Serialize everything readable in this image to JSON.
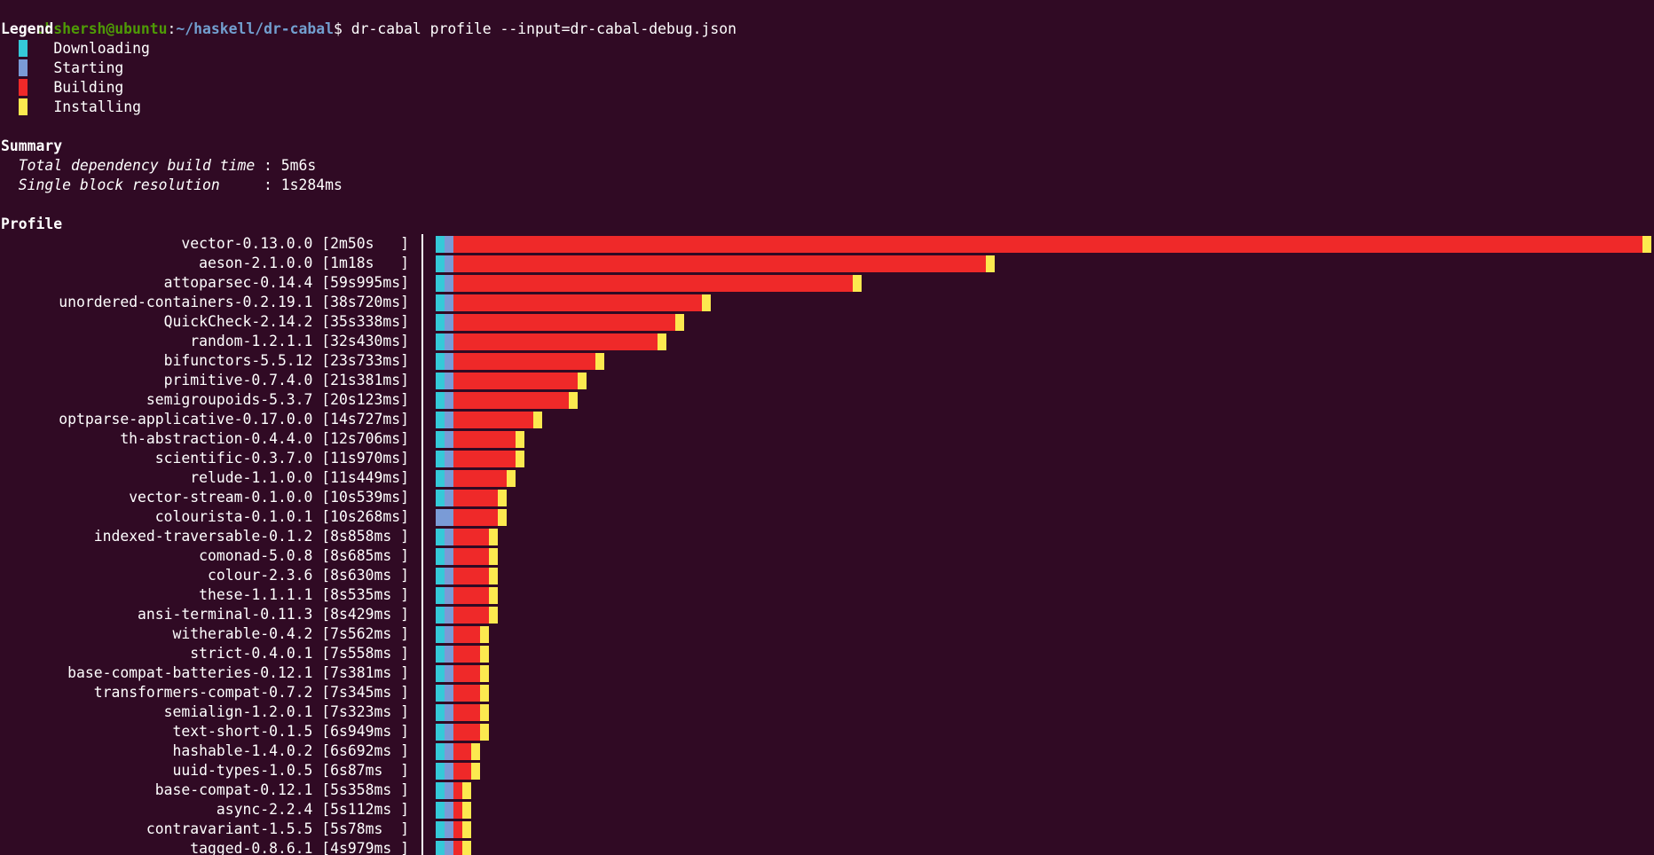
{
  "colors": {
    "background": "#300a24",
    "text": "#ffffff",
    "prompt_user": "#4e9a06",
    "prompt_path": "#729fcf",
    "downloading": "#35c9d8",
    "starting": "#7a9bd6",
    "building": "#ef2929",
    "installing": "#fce94f"
  },
  "prompt": {
    "user_host": "chshersh@ubuntu",
    "colon": ":",
    "path": "~/haskell/dr-cabal",
    "dollar": "$ ",
    "command": "dr-cabal profile --input=dr-cabal-debug.json"
  },
  "legend": {
    "title": "Legend",
    "items": [
      {
        "label": "Downloading",
        "color": "#35c9d8"
      },
      {
        "label": "Starting",
        "color": "#7a9bd6"
      },
      {
        "label": "Building",
        "color": "#ef2929"
      },
      {
        "label": "Installing",
        "color": "#fce94f"
      }
    ]
  },
  "summary": {
    "title": "Summary",
    "rows": [
      {
        "label": "Total dependency build time",
        "value": "5m6s"
      },
      {
        "label": "Single block resolution    ",
        "value": "1s284ms"
      }
    ]
  },
  "profile": {
    "title": "Profile",
    "time_scale_seconds": 170,
    "packages": [
      {
        "name": "vector-0.13.0.0",
        "time": "2m50s   ",
        "seconds": 170,
        "download": 1,
        "start": 1,
        "install": 1
      },
      {
        "name": "aeson-2.1.0.0",
        "time": "1m18s   ",
        "seconds": 78,
        "download": 1,
        "start": 1,
        "install": 1
      },
      {
        "name": "attoparsec-0.14.4",
        "time": "59s995ms",
        "seconds": 59.995,
        "download": 1,
        "start": 1,
        "install": 1
      },
      {
        "name": "unordered-containers-0.2.19.1",
        "time": "38s720ms",
        "seconds": 38.72,
        "download": 1,
        "start": 1,
        "install": 1
      },
      {
        "name": "QuickCheck-2.14.2",
        "time": "35s338ms",
        "seconds": 35.338,
        "download": 1,
        "start": 1,
        "install": 1
      },
      {
        "name": "random-1.2.1.1",
        "time": "32s430ms",
        "seconds": 32.43,
        "download": 1,
        "start": 1,
        "install": 1
      },
      {
        "name": "bifunctors-5.5.12",
        "time": "23s733ms",
        "seconds": 23.733,
        "download": 1,
        "start": 1,
        "install": 1
      },
      {
        "name": "primitive-0.7.4.0",
        "time": "21s381ms",
        "seconds": 21.381,
        "download": 1,
        "start": 1,
        "install": 1
      },
      {
        "name": "semigroupoids-5.3.7",
        "time": "20s123ms",
        "seconds": 20.123,
        "download": 1,
        "start": 1,
        "install": 1
      },
      {
        "name": "optparse-applicative-0.17.0.0",
        "time": "14s727ms",
        "seconds": 14.727,
        "download": 1,
        "start": 1,
        "install": 1
      },
      {
        "name": "th-abstraction-0.4.4.0",
        "time": "12s706ms",
        "seconds": 12.706,
        "download": 1,
        "start": 1,
        "install": 1
      },
      {
        "name": "scientific-0.3.7.0",
        "time": "11s970ms",
        "seconds": 11.97,
        "download": 1,
        "start": 1,
        "install": 1
      },
      {
        "name": "relude-1.1.0.0",
        "time": "11s449ms",
        "seconds": 11.449,
        "download": 1,
        "start": 1,
        "install": 1
      },
      {
        "name": "vector-stream-0.1.0.0",
        "time": "10s539ms",
        "seconds": 10.539,
        "download": 1,
        "start": 1,
        "install": 1
      },
      {
        "name": "colourista-0.1.0.1",
        "time": "10s268ms",
        "seconds": 10.268,
        "download": 0,
        "start": 2,
        "install": 1
      },
      {
        "name": "indexed-traversable-0.1.2",
        "time": "8s858ms ",
        "seconds": 8.858,
        "download": 1,
        "start": 1,
        "install": 1
      },
      {
        "name": "comonad-5.0.8",
        "time": "8s685ms ",
        "seconds": 8.685,
        "download": 1,
        "start": 1,
        "install": 1
      },
      {
        "name": "colour-2.3.6",
        "time": "8s630ms ",
        "seconds": 8.63,
        "download": 1,
        "start": 1,
        "install": 1
      },
      {
        "name": "these-1.1.1.1",
        "time": "8s535ms ",
        "seconds": 8.535,
        "download": 1,
        "start": 1,
        "install": 1
      },
      {
        "name": "ansi-terminal-0.11.3",
        "time": "8s429ms ",
        "seconds": 8.429,
        "download": 1,
        "start": 1,
        "install": 1
      },
      {
        "name": "witherable-0.4.2",
        "time": "7s562ms ",
        "seconds": 7.562,
        "download": 1,
        "start": 1,
        "install": 1
      },
      {
        "name": "strict-0.4.0.1",
        "time": "7s558ms ",
        "seconds": 7.558,
        "download": 1,
        "start": 1,
        "install": 1
      },
      {
        "name": "base-compat-batteries-0.12.1",
        "time": "7s381ms ",
        "seconds": 7.381,
        "download": 1,
        "start": 1,
        "install": 1
      },
      {
        "name": "transformers-compat-0.7.2",
        "time": "7s345ms ",
        "seconds": 7.345,
        "download": 1,
        "start": 1,
        "install": 1
      },
      {
        "name": "semialign-1.2.0.1",
        "time": "7s323ms ",
        "seconds": 7.323,
        "download": 1,
        "start": 1,
        "install": 1
      },
      {
        "name": "text-short-0.1.5",
        "time": "6s949ms ",
        "seconds": 6.949,
        "download": 1,
        "start": 1,
        "install": 1
      },
      {
        "name": "hashable-1.4.0.2",
        "time": "6s692ms ",
        "seconds": 6.692,
        "download": 1,
        "start": 1,
        "install": 1
      },
      {
        "name": "uuid-types-1.0.5",
        "time": "6s87ms  ",
        "seconds": 6.087,
        "download": 1,
        "start": 1,
        "install": 1
      },
      {
        "name": "base-compat-0.12.1",
        "time": "5s358ms ",
        "seconds": 5.358,
        "download": 1,
        "start": 1,
        "install": 1
      },
      {
        "name": "async-2.2.4",
        "time": "5s112ms ",
        "seconds": 5.112,
        "download": 1,
        "start": 1,
        "install": 1
      },
      {
        "name": "contravariant-1.5.5",
        "time": "5s78ms  ",
        "seconds": 5.078,
        "download": 1,
        "start": 1,
        "install": 1
      },
      {
        "name": "tagged-0.8.6.1",
        "time": "4s979ms ",
        "seconds": 4.979,
        "download": 1,
        "start": 1,
        "install": 1
      }
    ]
  }
}
